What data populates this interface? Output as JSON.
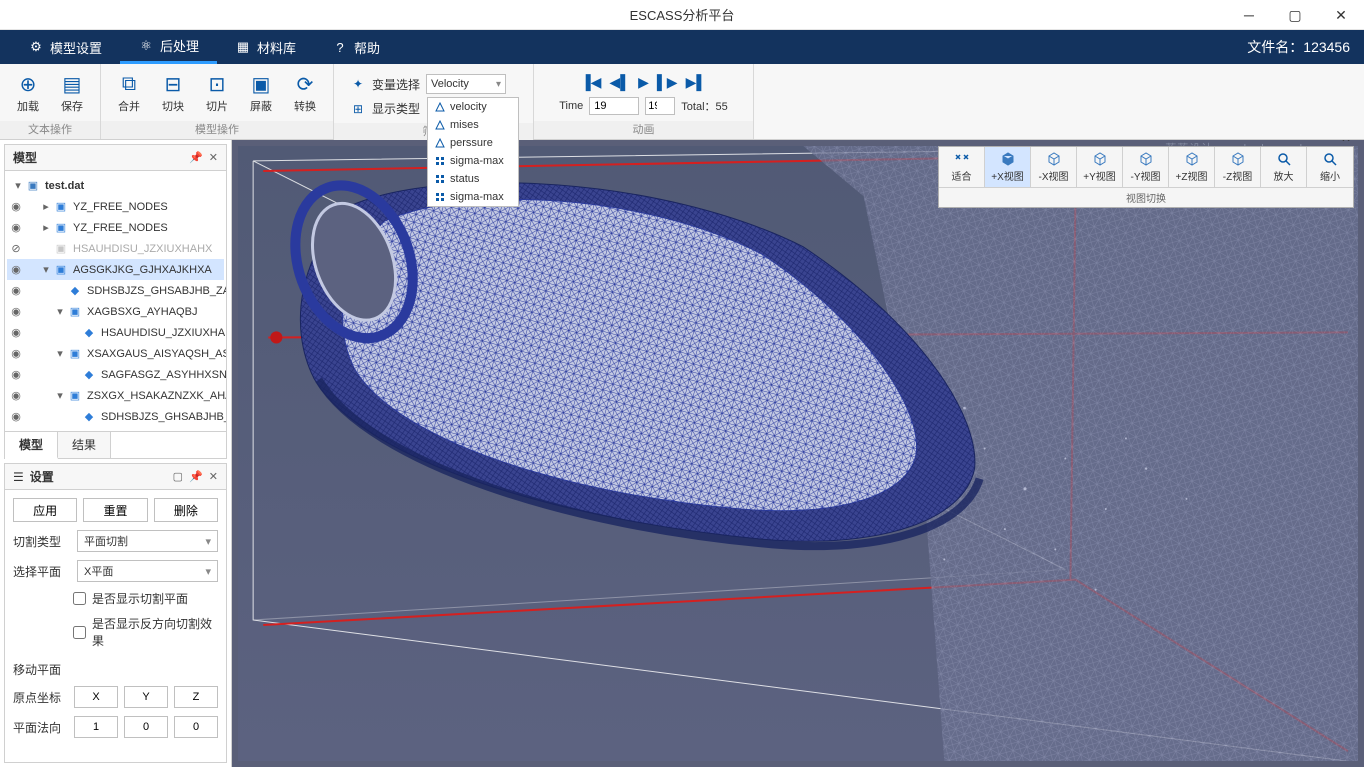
{
  "app": {
    "title": "ESCASS分析平台"
  },
  "menubar": {
    "items": [
      {
        "label": "模型设置",
        "active": false
      },
      {
        "label": "后处理",
        "active": true
      },
      {
        "label": "材料库",
        "active": false
      },
      {
        "label": "帮助",
        "active": false
      }
    ],
    "filename_label": "文件名：123456"
  },
  "ribbon": {
    "groups": {
      "text": {
        "label": "文本操作",
        "tools": [
          {
            "label": "加载",
            "icon": "load"
          },
          {
            "label": "保存",
            "icon": "save"
          }
        ]
      },
      "model": {
        "label": "模型操作",
        "tools": [
          {
            "label": "合并",
            "icon": "merge"
          },
          {
            "label": "切块",
            "icon": "cutblock"
          },
          {
            "label": "切片",
            "icon": "slice"
          },
          {
            "label": "屏蔽",
            "icon": "mask"
          },
          {
            "label": "转换",
            "icon": "convert"
          }
        ]
      },
      "filter": {
        "label": "筛选",
        "var_label": "变量选择",
        "var_value": "Velocity",
        "disp_label": "显示类型",
        "dropdown": [
          {
            "label": "velocity",
            "icon": "tri"
          },
          {
            "label": "mises",
            "icon": "tri"
          },
          {
            "label": "perssure",
            "icon": "tri"
          },
          {
            "label": "sigma-max",
            "icon": "grid"
          },
          {
            "label": "status",
            "icon": "grid"
          },
          {
            "label": "sigma-max",
            "icon": "grid"
          }
        ]
      },
      "anim": {
        "label": "动画",
        "time_label": "Time",
        "time_value": "19",
        "spinner_value": "19",
        "total_label": "Total：55"
      }
    }
  },
  "model_tree": {
    "title": "模型",
    "root": {
      "label": "test.dat"
    },
    "items": [
      {
        "depth": 1,
        "label": "YZ_FREE_NODES",
        "icon": "cube",
        "vis": true,
        "arrow": "closed"
      },
      {
        "depth": 1,
        "label": "YZ_FREE_NODES",
        "icon": "cube",
        "vis": true,
        "arrow": "closed"
      },
      {
        "depth": 1,
        "label": "HSAUHDISU_JZXIUXHAHX",
        "icon": "cube",
        "vis": false,
        "arrow": "none",
        "dim": true
      },
      {
        "depth": 1,
        "label": "AGSGKJKG_GJHXAJKHXA",
        "icon": "cube",
        "vis": true,
        "arrow": "open",
        "selected": true
      },
      {
        "depth": 2,
        "label": "SDHSBJZS_GHSABJHB_ZAHU",
        "icon": "leaf",
        "vis": true,
        "arrow": "none"
      },
      {
        "depth": 2,
        "label": "XAGBSXG_AYHAQBJ",
        "icon": "cube",
        "vis": true,
        "arrow": "open"
      },
      {
        "depth": 3,
        "label": "HSAUHDISU_JZXIUXHAHX",
        "icon": "leaf",
        "vis": true,
        "arrow": "none"
      },
      {
        "depth": 2,
        "label": "XSAXGAUS_AISYAQSH_ASHX",
        "icon": "cube",
        "vis": true,
        "arrow": "open"
      },
      {
        "depth": 3,
        "label": "SAGFASGZ_ASYHHXSN",
        "icon": "leaf",
        "vis": true,
        "arrow": "none"
      },
      {
        "depth": 2,
        "label": "ZSXGX_HSAKAZNZXK_AHASX",
        "icon": "cube",
        "vis": true,
        "arrow": "open"
      },
      {
        "depth": 3,
        "label": "SDHSBJZS_GHSABJHB_ZAHU",
        "icon": "leaf",
        "vis": true,
        "arrow": "none"
      }
    ],
    "tabs": [
      {
        "label": "模型",
        "active": true
      },
      {
        "label": "结果",
        "active": false
      }
    ]
  },
  "settings": {
    "title": "设置",
    "buttons": {
      "apply": "应用",
      "reset": "重置",
      "delete": "删除"
    },
    "cut_type_label": "切割类型",
    "cut_type_value": "平面切割",
    "plane_label": "选择平面",
    "plane_value": "X平面",
    "check1": "是否显示切割平面",
    "check2": "是否显示反方向切割效果",
    "move_section": "移动平面",
    "origin_label": "原点坐标",
    "origin": {
      "x": "X",
      "y": "Y",
      "z": "Z"
    },
    "normal_label": "平面法向",
    "normal": {
      "x": "1",
      "y": "0",
      "z": "0"
    }
  },
  "view_toolbar": {
    "label": "视图切换",
    "buttons": [
      {
        "label": "适合",
        "active": false
      },
      {
        "label": "+X视图",
        "active": true
      },
      {
        "label": "-X视图",
        "active": false
      },
      {
        "label": "+Y视图",
        "active": false
      },
      {
        "label": "-Y视图",
        "active": false
      },
      {
        "label": "+Z视图",
        "active": false
      },
      {
        "label": "-Z视图",
        "active": false
      },
      {
        "label": "放大",
        "active": false
      },
      {
        "label": "缩小",
        "active": false
      }
    ]
  },
  "viewport": {
    "background_top": "#515a75",
    "background_bottom": "#5c6280",
    "mesh_color": "#2a3a9e",
    "mesh_fill": "#d8dce8",
    "mesh_fill_dark": "#2c3a9a",
    "bbox_color": "#ffffff",
    "axis_color": "#d42020",
    "marker_color": "#c01818",
    "watermark": "蓝蓝设计www.lanlanwork.com"
  }
}
